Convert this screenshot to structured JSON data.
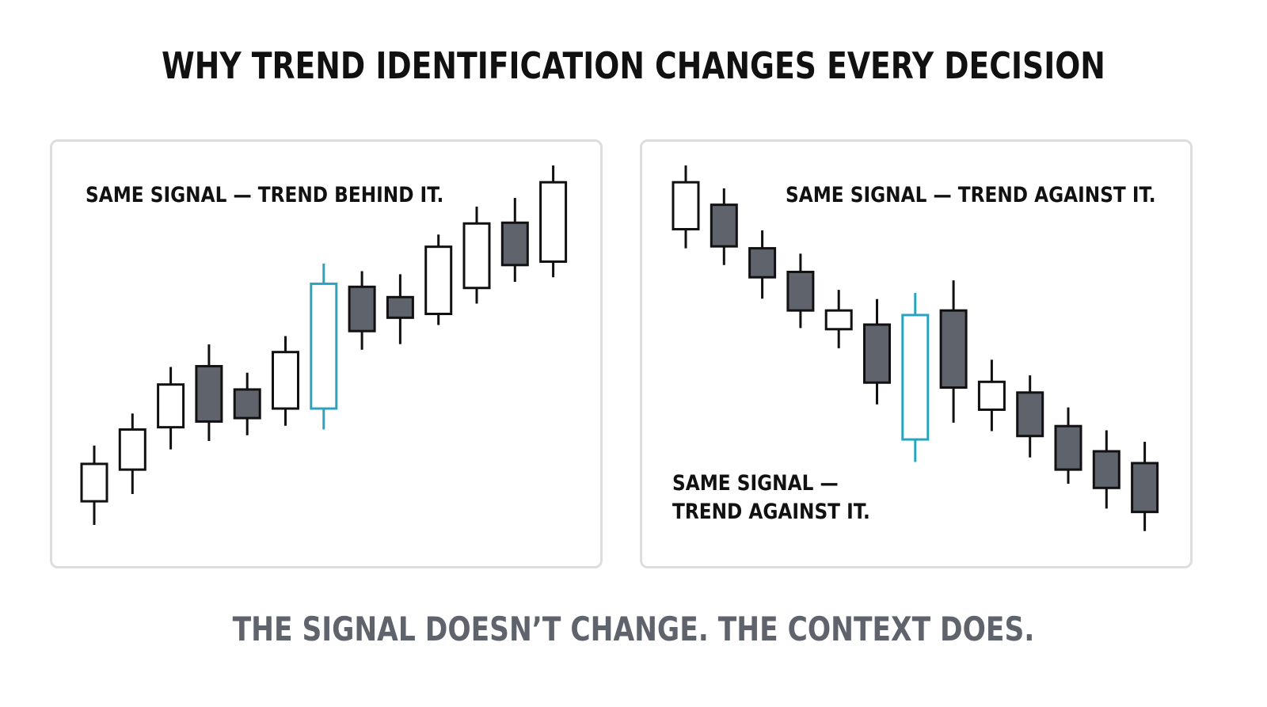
{
  "title": "WHY TREND IDENTIFICATION CHANGES EVERY DECISION",
  "footer": "THE SIGNAL DOESN’T CHANGE. THE CONTEXT DOES.",
  "colors": {
    "bullish_fill": "#ffffff",
    "bearish_fill": "#5f636b",
    "outline": "#111111",
    "signal": "#2ba3bf",
    "panel_border": "#dddddd",
    "footer_text": "#5f636b"
  },
  "panels": [
    {
      "id": "uptrend",
      "label": "SAME SIGNAL — TREND BEHIND IT.",
      "price_range": [
        0,
        100
      ],
      "candles": [
        {
          "open": 12.0,
          "close": 21.8,
          "high": 26.6,
          "low": 5.8,
          "signal": false
        },
        {
          "open": 20.3,
          "close": 30.8,
          "high": 35.0,
          "low": 13.9,
          "signal": false
        },
        {
          "open": 31.4,
          "close": 42.6,
          "high": 47.2,
          "low": 25.6,
          "signal": false
        },
        {
          "open": 47.4,
          "close": 32.9,
          "high": 53.1,
          "low": 27.8,
          "signal": false
        },
        {
          "open": 41.3,
          "close": 33.8,
          "high": 45.7,
          "low": 29.3,
          "signal": false
        },
        {
          "open": 36.3,
          "close": 51.1,
          "high": 55.3,
          "low": 31.8,
          "signal": false
        },
        {
          "open": 36.3,
          "close": 69.0,
          "high": 74.3,
          "low": 30.8,
          "signal": true
        },
        {
          "open": 68.2,
          "close": 56.6,
          "high": 72.3,
          "low": 51.7,
          "signal": false
        },
        {
          "open": 65.5,
          "close": 60.1,
          "high": 71.5,
          "low": 53.2,
          "signal": false
        },
        {
          "open": 61.1,
          "close": 78.7,
          "high": 81.9,
          "low": 58.2,
          "signal": false
        },
        {
          "open": 67.9,
          "close": 84.8,
          "high": 89.2,
          "low": 63.8,
          "signal": false
        },
        {
          "open": 85.0,
          "close": 73.9,
          "high": 91.5,
          "low": 69.5,
          "signal": false
        },
        {
          "open": 74.8,
          "close": 95.6,
          "high": 100.0,
          "low": 70.7,
          "signal": false
        }
      ]
    },
    {
      "id": "downtrend",
      "label_top": "SAME SIGNAL — TREND AGAINST IT.",
      "label_bottom_lines": [
        "SAME SIGNAL —",
        "TREND AGAINST IT."
      ],
      "price_range": [
        0,
        100
      ],
      "candles": [
        {
          "open": 83.3,
          "close": 95.6,
          "high": 100.0,
          "low": 78.3,
          "signal": false
        },
        {
          "open": 89.7,
          "close": 78.8,
          "high": 94.0,
          "low": 73.9,
          "signal": false
        },
        {
          "open": 78.3,
          "close": 70.7,
          "high": 83.0,
          "low": 65.1,
          "signal": false
        },
        {
          "open": 72.1,
          "close": 62.0,
          "high": 76.9,
          "low": 57.4,
          "signal": false
        },
        {
          "open": 57.1,
          "close": 62.0,
          "high": 67.4,
          "low": 52.1,
          "signal": false
        },
        {
          "open": 58.3,
          "close": 43.1,
          "high": 65.0,
          "low": 37.4,
          "signal": false
        },
        {
          "open": 28.2,
          "close": 60.8,
          "high": 66.6,
          "low": 22.3,
          "signal": true
        },
        {
          "open": 62.0,
          "close": 41.8,
          "high": 69.9,
          "low": 32.6,
          "signal": false
        },
        {
          "open": 36.0,
          "close": 43.3,
          "high": 49.1,
          "low": 30.4,
          "signal": false
        },
        {
          "open": 40.5,
          "close": 29.1,
          "high": 45.0,
          "low": 23.5,
          "signal": false
        },
        {
          "open": 31.7,
          "close": 20.3,
          "high": 36.6,
          "low": 16.6,
          "signal": false
        },
        {
          "open": 25.1,
          "close": 15.5,
          "high": 30.6,
          "low": 10.1,
          "signal": false
        },
        {
          "open": 22.0,
          "close": 9.2,
          "high": 27.6,
          "low": 4.2,
          "signal": false
        }
      ]
    }
  ]
}
